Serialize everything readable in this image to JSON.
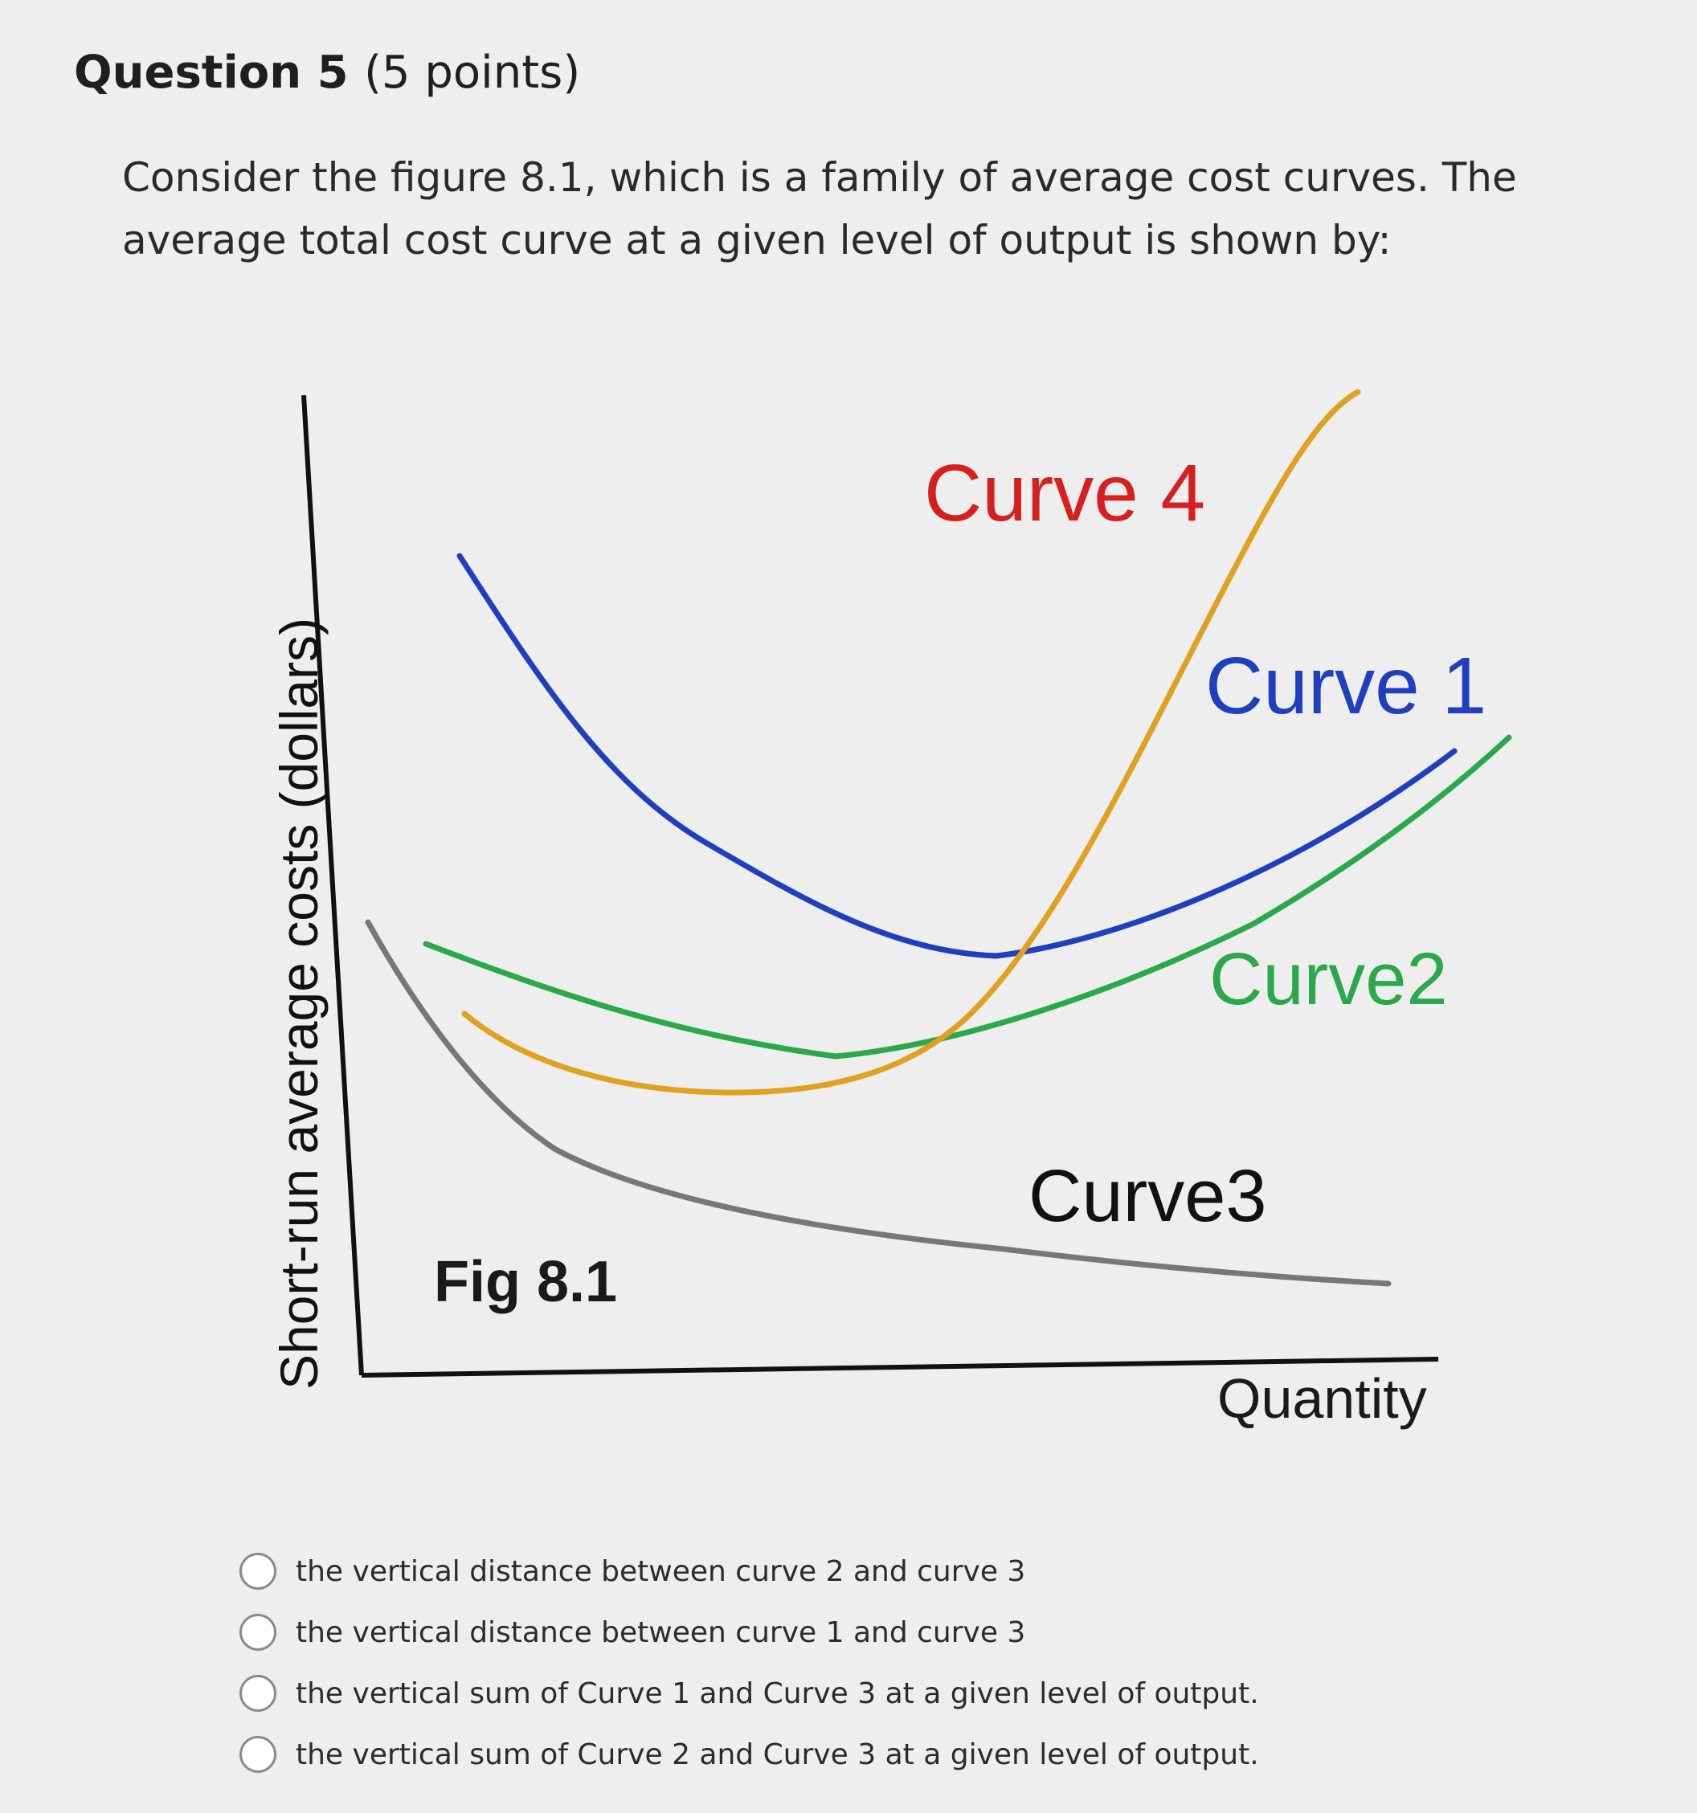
{
  "question": {
    "title": "Question 5",
    "points": "(5 points)",
    "text": "Consider the figure 8.1, which is a family of average cost curves. The average total cost curve at a given level of output is shown by:"
  },
  "figure": {
    "caption": "Fig 8.1",
    "y_axis_label": "Short-run average costs (dollars)",
    "x_axis_label": "Quantity",
    "curves": [
      {
        "label": "Curve 1",
        "color": "#1f3fbf"
      },
      {
        "label": "Curve2",
        "color": "#2aa84a"
      },
      {
        "label": "Curve3",
        "color": "#777777"
      },
      {
        "label": "Curve 4",
        "color": "#e0a020",
        "label_color": "#d62020"
      }
    ]
  },
  "answers": [
    {
      "text": "the vertical distance between curve 2 and curve 3"
    },
    {
      "text": "the vertical distance between curve 1 and curve 3"
    },
    {
      "text": "the vertical sum of Curve 1 and Curve 3 at a given level of output."
    },
    {
      "text": "the vertical sum of Curve 2 and Curve 3 at a given level of output."
    }
  ]
}
